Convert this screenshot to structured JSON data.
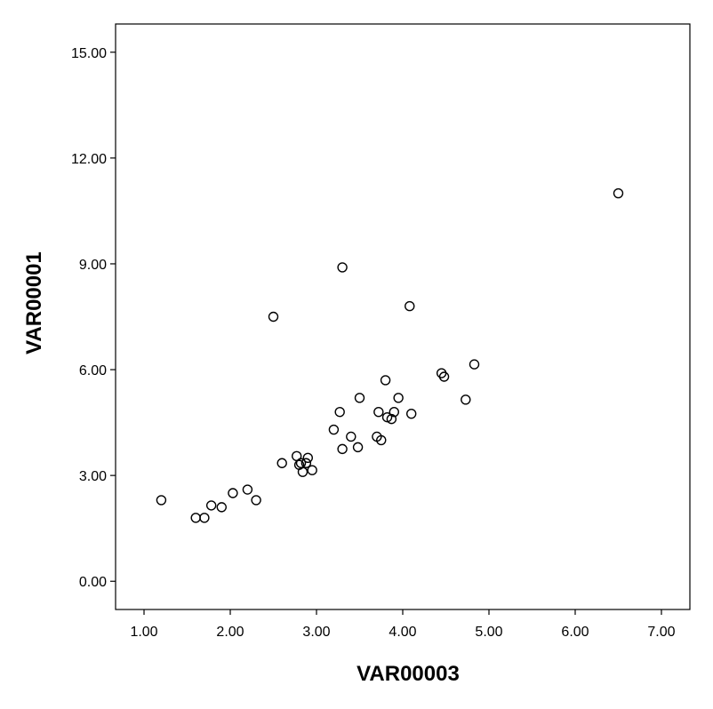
{
  "chart_data": {
    "type": "scatter",
    "title": "",
    "xlabel": "VAR00003",
    "ylabel": "VAR00001",
    "xlim": [
      0.67,
      7.33
    ],
    "ylim": [
      -0.8,
      15.8
    ],
    "xticks": [
      1,
      2,
      3,
      4,
      5,
      6,
      7
    ],
    "yticks": [
      0,
      3,
      6,
      9,
      12,
      15
    ],
    "tick_decimals": 2,
    "grid": false,
    "legend": "none",
    "marker": "open-circle",
    "points": [
      {
        "x": 1.2,
        "y": 2.3
      },
      {
        "x": 1.6,
        "y": 1.8
      },
      {
        "x": 1.7,
        "y": 1.8
      },
      {
        "x": 1.78,
        "y": 2.15
      },
      {
        "x": 1.9,
        "y": 2.1
      },
      {
        "x": 2.03,
        "y": 2.5
      },
      {
        "x": 2.2,
        "y": 2.6
      },
      {
        "x": 2.3,
        "y": 2.3
      },
      {
        "x": 2.5,
        "y": 7.5
      },
      {
        "x": 2.6,
        "y": 3.35
      },
      {
        "x": 2.77,
        "y": 3.55
      },
      {
        "x": 2.8,
        "y": 3.3
      },
      {
        "x": 2.82,
        "y": 3.35
      },
      {
        "x": 2.84,
        "y": 3.1
      },
      {
        "x": 2.88,
        "y": 3.35
      },
      {
        "x": 2.9,
        "y": 3.5
      },
      {
        "x": 2.95,
        "y": 3.15
      },
      {
        "x": 3.2,
        "y": 4.3
      },
      {
        "x": 3.27,
        "y": 4.8
      },
      {
        "x": 3.3,
        "y": 3.75
      },
      {
        "x": 3.3,
        "y": 8.9
      },
      {
        "x": 3.4,
        "y": 4.1
      },
      {
        "x": 3.48,
        "y": 3.8
      },
      {
        "x": 3.5,
        "y": 5.2
      },
      {
        "x": 3.7,
        "y": 4.1
      },
      {
        "x": 3.72,
        "y": 4.8
      },
      {
        "x": 3.75,
        "y": 4.0
      },
      {
        "x": 3.8,
        "y": 5.7
      },
      {
        "x": 3.82,
        "y": 4.65
      },
      {
        "x": 3.87,
        "y": 4.6
      },
      {
        "x": 3.9,
        "y": 4.8
      },
      {
        "x": 3.95,
        "y": 5.2
      },
      {
        "x": 4.08,
        "y": 7.8
      },
      {
        "x": 4.1,
        "y": 4.75
      },
      {
        "x": 4.45,
        "y": 5.9
      },
      {
        "x": 4.48,
        "y": 5.8
      },
      {
        "x": 4.73,
        "y": 5.15
      },
      {
        "x": 4.83,
        "y": 6.15
      },
      {
        "x": 6.5,
        "y": 11.0
      }
    ]
  }
}
